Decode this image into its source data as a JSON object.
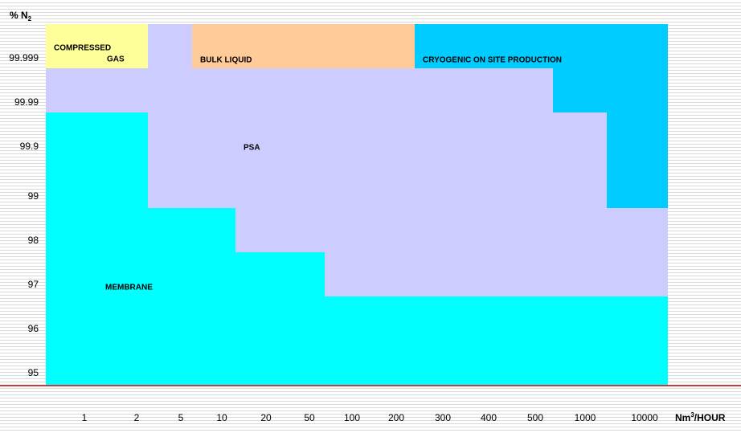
{
  "y_axis_label": {
    "text": "% N",
    "subscript": "2"
  },
  "x_axis_label": {
    "text": "Nm",
    "superscript": "3",
    "suffix": "/HOUR"
  },
  "y_labels": [
    "99.999",
    "99.99",
    "99.9",
    "99",
    "98",
    "97",
    "96",
    "95"
  ],
  "x_labels": [
    "1",
    "2",
    "5",
    "10",
    "20",
    "50",
    "100",
    "200",
    "300",
    "400",
    "500",
    "1000",
    "10000"
  ],
  "regions": {
    "compressed_gas": [
      "COMPRESSED",
      "GAS"
    ],
    "bulk_liquid": "BULK LIQUID",
    "cryogenic": "CRYOGENIC ON SITE PRODUCTION",
    "psa": "PSA",
    "membrane": "MEMBRANE"
  }
}
